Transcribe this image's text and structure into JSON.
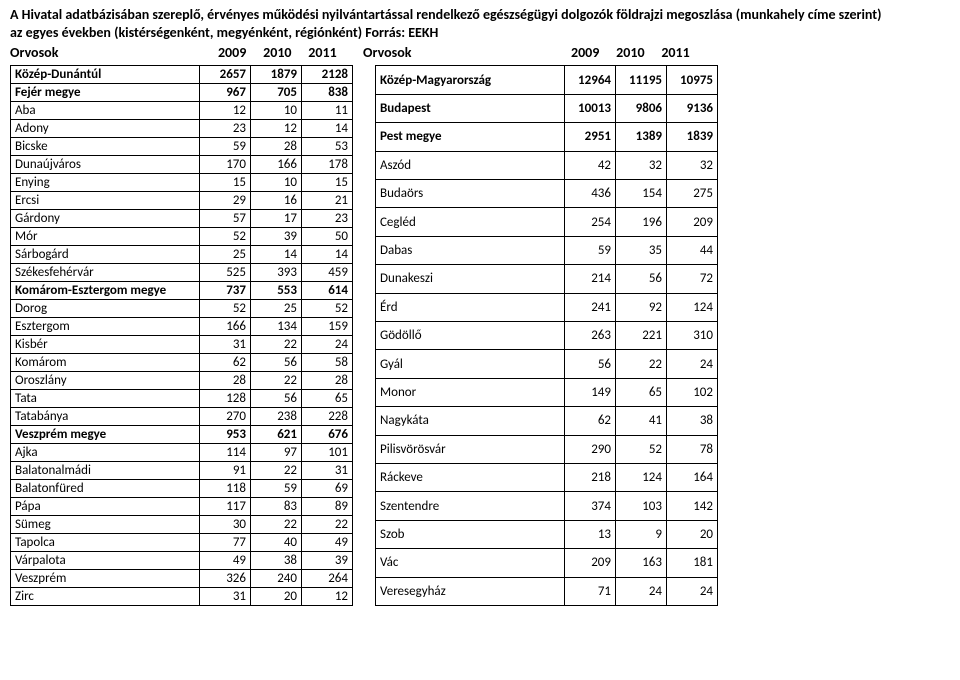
{
  "title_line1": "A Hivatal adatbázisában szereplő, érvényes működési nyilvántartással rendelkező egészségügyi dolgozók földrajzi megoszlása (munkahely címe szerint)",
  "title_line2": "az egyes években (kistérségenként, megyénként, régiónként) Forrás: EEKH",
  "header_label": "Orvosok",
  "years": [
    "2009",
    "2010",
    "2011"
  ],
  "left": {
    "rows": [
      {
        "name": "Közép-Dunántúl",
        "v": [
          "2657",
          "1879",
          "2128"
        ],
        "bold": true
      },
      {
        "name": "Fejér megye",
        "v": [
          "967",
          "705",
          "838"
        ],
        "bold": true
      },
      {
        "name": "Aba",
        "v": [
          "12",
          "10",
          "11"
        ]
      },
      {
        "name": "Adony",
        "v": [
          "23",
          "12",
          "14"
        ]
      },
      {
        "name": "Bicske",
        "v": [
          "59",
          "28",
          "53"
        ]
      },
      {
        "name": "Dunaújváros",
        "v": [
          "170",
          "166",
          "178"
        ]
      },
      {
        "name": "Enying",
        "v": [
          "15",
          "10",
          "15"
        ]
      },
      {
        "name": "Ercsi",
        "v": [
          "29",
          "16",
          "21"
        ]
      },
      {
        "name": "Gárdony",
        "v": [
          "57",
          "17",
          "23"
        ]
      },
      {
        "name": "Mór",
        "v": [
          "52",
          "39",
          "50"
        ]
      },
      {
        "name": "Sárbogárd",
        "v": [
          "25",
          "14",
          "14"
        ]
      },
      {
        "name": "Székesfehérvár",
        "v": [
          "525",
          "393",
          "459"
        ]
      },
      {
        "name": "Komárom-Esztergom megye",
        "v": [
          "737",
          "553",
          "614"
        ],
        "bold": true
      },
      {
        "name": "Dorog",
        "v": [
          "52",
          "25",
          "52"
        ]
      },
      {
        "name": "Esztergom",
        "v": [
          "166",
          "134",
          "159"
        ]
      },
      {
        "name": "Kisbér",
        "v": [
          "31",
          "22",
          "24"
        ]
      },
      {
        "name": "Komárom",
        "v": [
          "62",
          "56",
          "58"
        ]
      },
      {
        "name": "Oroszlány",
        "v": [
          "28",
          "22",
          "28"
        ]
      },
      {
        "name": "Tata",
        "v": [
          "128",
          "56",
          "65"
        ]
      },
      {
        "name": "Tatabánya",
        "v": [
          "270",
          "238",
          "228"
        ]
      },
      {
        "name": "Veszprém megye",
        "v": [
          "953",
          "621",
          "676"
        ],
        "bold": true
      },
      {
        "name": "Ajka",
        "v": [
          "114",
          "97",
          "101"
        ]
      },
      {
        "name": "Balatonalmádi",
        "v": [
          "91",
          "22",
          "31"
        ]
      },
      {
        "name": "Balatonfüred",
        "v": [
          "118",
          "59",
          "69"
        ]
      },
      {
        "name": "Pápa",
        "v": [
          "117",
          "83",
          "89"
        ]
      },
      {
        "name": "Sümeg",
        "v": [
          "30",
          "22",
          "22"
        ]
      },
      {
        "name": "Tapolca",
        "v": [
          "77",
          "40",
          "49"
        ]
      },
      {
        "name": "Várpalota",
        "v": [
          "49",
          "38",
          "39"
        ]
      },
      {
        "name": "Veszprém",
        "v": [
          "326",
          "240",
          "264"
        ]
      },
      {
        "name": "Zirc",
        "v": [
          "31",
          "20",
          "12"
        ]
      }
    ]
  },
  "right": {
    "rows": [
      {
        "name": "Közép-Magyarország",
        "v": [
          "12964",
          "11195",
          "10975"
        ],
        "bold": true
      },
      {
        "name": "Budapest",
        "v": [
          "10013",
          "9806",
          "9136"
        ],
        "bold": true
      },
      {
        "name": "Pest megye",
        "v": [
          "2951",
          "1389",
          "1839"
        ],
        "bold": true
      },
      {
        "name": "Aszód",
        "v": [
          "42",
          "32",
          "32"
        ]
      },
      {
        "name": "Budaörs",
        "v": [
          "436",
          "154",
          "275"
        ]
      },
      {
        "name": "Cegléd",
        "v": [
          "254",
          "196",
          "209"
        ]
      },
      {
        "name": "Dabas",
        "v": [
          "59",
          "35",
          "44"
        ]
      },
      {
        "name": "Dunakeszi",
        "v": [
          "214",
          "56",
          "72"
        ]
      },
      {
        "name": "Érd",
        "v": [
          "241",
          "92",
          "124"
        ]
      },
      {
        "name": "Gödöllő",
        "v": [
          "263",
          "221",
          "310"
        ]
      },
      {
        "name": "Gyál",
        "v": [
          "56",
          "22",
          "24"
        ]
      },
      {
        "name": "Monor",
        "v": [
          "149",
          "65",
          "102"
        ]
      },
      {
        "name": "Nagykáta",
        "v": [
          "62",
          "41",
          "38"
        ]
      },
      {
        "name": "Pilisvörösvár",
        "v": [
          "290",
          "52",
          "78"
        ]
      },
      {
        "name": "Ráckeve",
        "v": [
          "218",
          "124",
          "164"
        ]
      },
      {
        "name": "Szentendre",
        "v": [
          "374",
          "103",
          "142"
        ]
      },
      {
        "name": "Szob",
        "v": [
          "13",
          "9",
          "20"
        ]
      },
      {
        "name": "Vác",
        "v": [
          "209",
          "163",
          "181"
        ]
      },
      {
        "name": "Veresegyház",
        "v": [
          "71",
          "24",
          "24"
        ]
      }
    ]
  }
}
